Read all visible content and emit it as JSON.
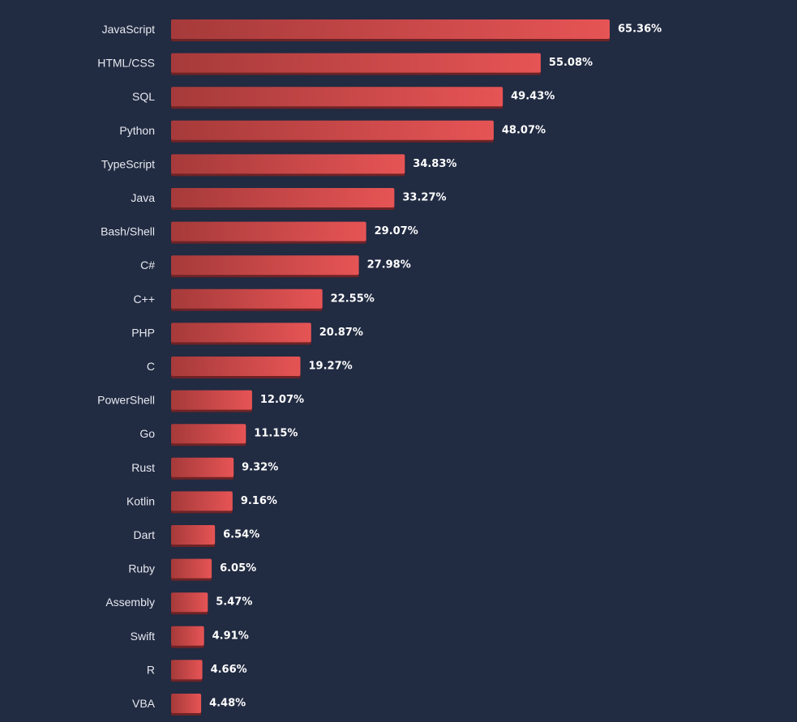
{
  "chart_data": {
    "type": "bar",
    "orientation": "horizontal",
    "title": "",
    "xlabel": "",
    "ylabel": "",
    "xlim": [
      0,
      65.36
    ],
    "grid": false,
    "legend": "none",
    "value_suffix": "%",
    "categories": [
      "JavaScript",
      "HTML/CSS",
      "SQL",
      "Python",
      "TypeScript",
      "Java",
      "Bash/Shell",
      "C#",
      "C++",
      "PHP",
      "C",
      "PowerShell",
      "Go",
      "Rust",
      "Kotlin",
      "Dart",
      "Ruby",
      "Assembly",
      "Swift",
      "R",
      "VBA"
    ],
    "values": [
      65.36,
      55.08,
      49.43,
      48.07,
      34.83,
      33.27,
      29.07,
      27.98,
      22.55,
      20.87,
      19.27,
      12.07,
      11.15,
      9.32,
      9.16,
      6.54,
      6.05,
      5.47,
      4.91,
      4.66,
      4.48
    ],
    "value_labels": [
      "65.36%",
      "55.08%",
      "49.43%",
      "48.07%",
      "34.83%",
      "33.27%",
      "29.07%",
      "27.98%",
      "22.55%",
      "20.87%",
      "19.27%",
      "12.07%",
      "11.15%",
      "9.32%",
      "9.16%",
      "6.54%",
      "6.05%",
      "5.47%",
      "4.91%",
      "4.66%",
      "4.48%"
    ]
  },
  "colors": {
    "background": "#212b42",
    "bar_start": "#a63a3a",
    "bar_end": "#e65455",
    "bar_shadow": "#6e2326",
    "category_text": "#e7e9ef",
    "value_text": "#ffffff"
  }
}
